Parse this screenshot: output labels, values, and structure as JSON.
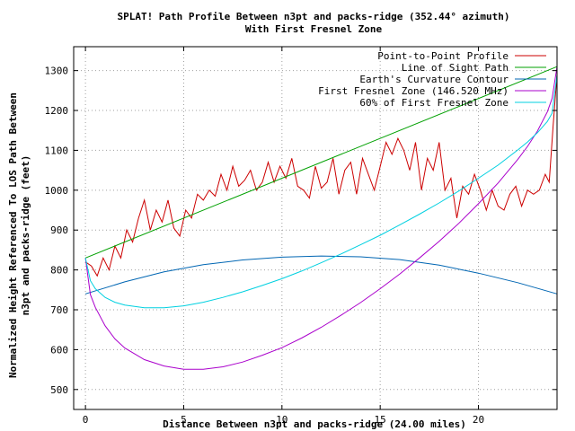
{
  "chart_data": {
    "type": "line",
    "title": "SPLAT! Path Profile Between n3pt and packs-ridge (352.44° azimuth)",
    "subtitle": "With First Fresnel Zone",
    "xlabel": "Distance Between n3pt and packs-ridge (24.00 miles)",
    "ylabel_line1": "Normalized Height Referenced To LOS Path Between",
    "ylabel_line2": "n3pt and packs-ridge (feet)",
    "xlim": [
      -0.6,
      24
    ],
    "ylim": [
      450,
      1360
    ],
    "x_ticks": [
      0,
      5,
      10,
      15,
      20
    ],
    "x_tick_labels": [
      "0",
      "5",
      "10",
      "15",
      "20"
    ],
    "y_ticks": [
      500,
      600,
      700,
      800,
      900,
      1000,
      1100,
      1200,
      1300
    ],
    "y_tick_labels": [
      "500",
      "600",
      "700",
      "800",
      "900",
      "1000",
      "1100",
      "1200",
      "1300"
    ],
    "grid": true,
    "legend_position": "top-right",
    "series": [
      {
        "name": "Point-to-Point Profile",
        "color": "#cc0000",
        "x": [
          0,
          0.3,
          0.6,
          0.9,
          1.2,
          1.5,
          1.8,
          2.1,
          2.4,
          2.7,
          3.0,
          3.3,
          3.6,
          3.9,
          4.2,
          4.5,
          4.8,
          5.1,
          5.4,
          5.7,
          6.0,
          6.3,
          6.6,
          6.9,
          7.2,
          7.5,
          7.8,
          8.1,
          8.4,
          8.7,
          9.0,
          9.3,
          9.6,
          9.9,
          10.2,
          10.5,
          10.8,
          11.1,
          11.4,
          11.7,
          12.0,
          12.3,
          12.6,
          12.9,
          13.2,
          13.5,
          13.8,
          14.1,
          14.4,
          14.7,
          15.0,
          15.3,
          15.6,
          15.9,
          16.2,
          16.5,
          16.8,
          17.1,
          17.4,
          17.7,
          18.0,
          18.3,
          18.6,
          18.9,
          19.2,
          19.5,
          19.8,
          20.1,
          20.4,
          20.7,
          21.0,
          21.3,
          21.6,
          21.9,
          22.2,
          22.5,
          22.8,
          23.1,
          23.4,
          23.6,
          23.8,
          24.0
        ],
        "values": [
          820,
          810,
          785,
          830,
          800,
          860,
          830,
          900,
          870,
          930,
          975,
          900,
          950,
          920,
          975,
          905,
          885,
          950,
          930,
          990,
          975,
          1000,
          985,
          1040,
          1000,
          1060,
          1010,
          1025,
          1050,
          1000,
          1020,
          1070,
          1020,
          1060,
          1030,
          1080,
          1010,
          1000,
          980,
          1060,
          1005,
          1020,
          1080,
          990,
          1050,
          1070,
          990,
          1080,
          1040,
          1000,
          1060,
          1120,
          1090,
          1130,
          1100,
          1050,
          1120,
          1000,
          1080,
          1050,
          1120,
          1000,
          1030,
          930,
          1010,
          990,
          1040,
          1000,
          950,
          1000,
          960,
          950,
          990,
          1010,
          960,
          1000,
          990,
          1000,
          1040,
          1020,
          1160,
          1290
        ]
      },
      {
        "name": "Line of Sight Path",
        "color": "#00a000",
        "x": [
          0,
          24
        ],
        "values": [
          830,
          1310
        ]
      },
      {
        "name": "Earth's Curvature Contour",
        "color": "#0066b3",
        "x": [
          0,
          2,
          4,
          6,
          8,
          10,
          12,
          14,
          16,
          18,
          20,
          22,
          24
        ],
        "values": [
          740,
          770,
          795,
          813,
          825,
          832,
          835,
          833,
          826,
          812,
          792,
          768,
          740
        ]
      },
      {
        "name": "First Fresnel Zone (146.520 MHz)",
        "color": "#aa00cc",
        "x": [
          0,
          0.25,
          0.5,
          1,
          1.5,
          2,
          3,
          4,
          5,
          6,
          7,
          8,
          9,
          10,
          11,
          12,
          13,
          14,
          15,
          16,
          17,
          18,
          19,
          20,
          21,
          22,
          22.5,
          23,
          23.5,
          23.75,
          24
        ],
        "values": [
          830,
          738,
          706,
          660,
          627,
          604,
          575,
          559,
          551,
          551,
          557,
          569,
          586,
          605,
          629,
          656,
          686,
          718,
          753,
          790,
          830,
          872,
          917,
          966,
          1018,
          1077,
          1110,
          1148,
          1196,
          1230,
          1310
        ]
      },
      {
        "name": "60% of First Fresnel Zone",
        "color": "#00d0e0",
        "x": [
          0,
          0.25,
          0.5,
          1,
          1.5,
          2,
          3,
          4,
          5,
          6,
          7,
          8,
          9,
          10,
          11,
          12,
          13,
          14,
          15,
          16,
          17,
          18,
          19,
          20,
          21,
          22,
          22.5,
          23,
          23.5,
          23.75,
          24
        ],
        "values": [
          830,
          773,
          753,
          731,
          719,
          712,
          705,
          705,
          710,
          719,
          731,
          745,
          761,
          778,
          797,
          818,
          840,
          863,
          887,
          913,
          940,
          968,
          998,
          1030,
          1063,
          1101,
          1121,
          1144,
          1172,
          1193,
          1290
        ]
      }
    ]
  }
}
